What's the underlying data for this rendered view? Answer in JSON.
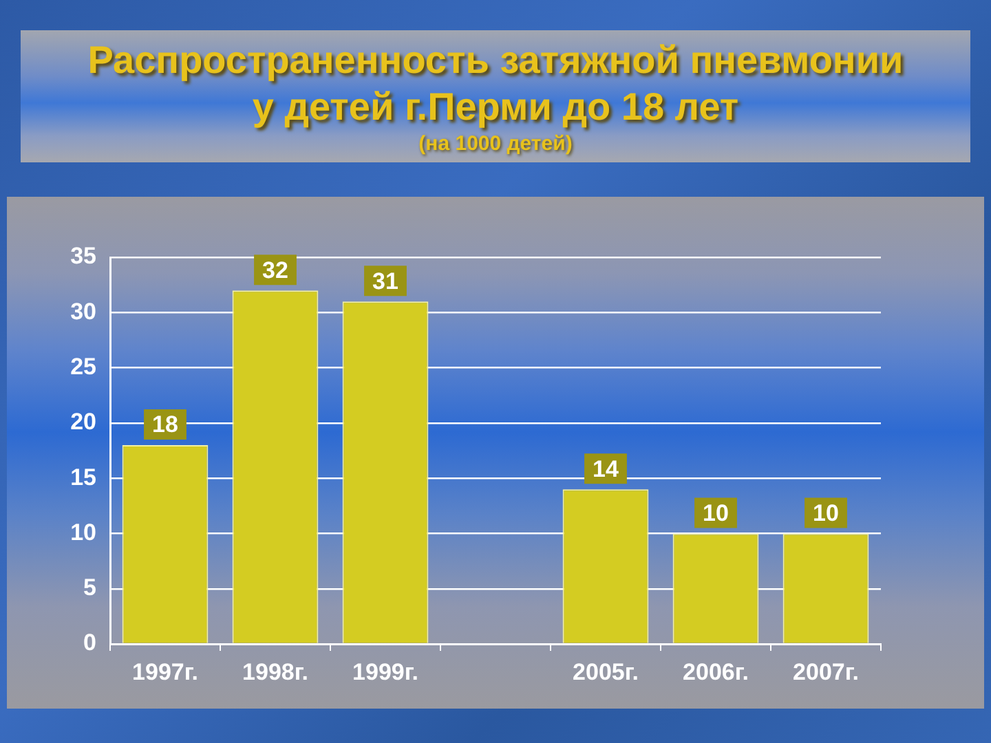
{
  "chart_data": {
    "type": "bar",
    "title": "Распространенность затяжной пневмонии у детей г.Перми до 18 лет",
    "subtitle": "(на 1000 детей)",
    "categories": [
      "1997г.",
      "1998г.",
      "1999г.",
      null,
      "2005г.",
      "2006г.",
      "2007г."
    ],
    "values": [
      18,
      32,
      31,
      null,
      14,
      10,
      10
    ],
    "color": "#d4cc22",
    "ylim": [
      0,
      35
    ],
    "yticks": [
      0,
      5,
      10,
      15,
      20,
      25,
      30,
      35
    ],
    "grid": "y",
    "data_labels": true
  }
}
